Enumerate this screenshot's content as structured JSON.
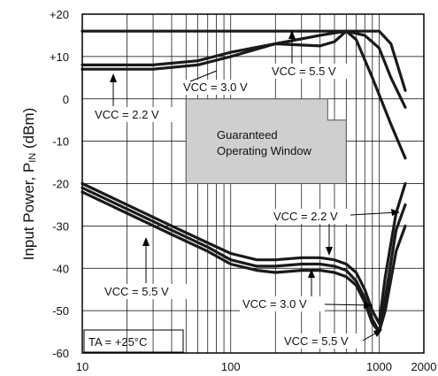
{
  "chart_data": {
    "type": "line",
    "x_scale": "log",
    "xlim": [
      10,
      2000
    ],
    "ylim": [
      -60,
      20
    ],
    "x_ticks": [
      "10",
      "100",
      "1000",
      "2000"
    ],
    "y_ticks": [
      "+20",
      "+10",
      "0",
      "-10",
      "-20",
      "-30",
      "-40",
      "-50",
      "-60"
    ],
    "ylabel_main": "Input Power, P",
    "ylabel_sub": "IN",
    "ylabel_unit": " (dBm)",
    "grid": true,
    "series": [
      {
        "name": "VCC = 2.2 V (max)",
        "x": [
          10,
          30,
          60,
          100,
          200,
          400,
          700,
          1000,
          1200,
          1500
        ],
        "y": [
          16,
          16,
          16,
          16,
          16,
          16,
          16,
          16,
          13,
          2
        ]
      },
      {
        "name": "VCC = 3.0 V (max)",
        "x": [
          10,
          30,
          60,
          100,
          200,
          400,
          500,
          600,
          700,
          900,
          1200,
          1500
        ],
        "y": [
          8,
          8,
          9,
          11,
          13,
          12.5,
          13.5,
          16,
          14,
          5,
          -6,
          -14
        ]
      },
      {
        "name": "VCC = 5.5 V (max)",
        "x": [
          10,
          30,
          60,
          100,
          200,
          400,
          600,
          800,
          1000,
          1200,
          1500
        ],
        "y": [
          7,
          7,
          8,
          10,
          13,
          15,
          16,
          15,
          12,
          5,
          -2
        ]
      },
      {
        "name": "VCC = 2.2 V (min)",
        "x": [
          10,
          20,
          40,
          70,
          100,
          150,
          200,
          300,
          400,
          500,
          600,
          700,
          800,
          900,
          1000,
          1100,
          1300,
          1500
        ],
        "y": [
          -20,
          -25,
          -30,
          -34,
          -36.5,
          -38,
          -38,
          -37.5,
          -37.5,
          -38,
          -39,
          -41,
          -45,
          -50,
          -53,
          -42,
          -27,
          -20
        ]
      },
      {
        "name": "VCC = 3.0 V (min)",
        "x": [
          10,
          20,
          40,
          70,
          100,
          150,
          200,
          300,
          400,
          500,
          600,
          700,
          800,
          900,
          1000,
          1100,
          1300,
          1500
        ],
        "y": [
          -21,
          -26,
          -31,
          -35,
          -38,
          -39.5,
          -39.5,
          -39,
          -39,
          -39.5,
          -40.5,
          -43,
          -47,
          -52,
          -55,
          -47,
          -31,
          -25
        ]
      },
      {
        "name": "VCC = 5.5 V (min)",
        "x": [
          10,
          20,
          40,
          70,
          100,
          150,
          200,
          300,
          400,
          500,
          600,
          700,
          800,
          900,
          1000,
          1100,
          1300,
          1500
        ],
        "y": [
          -22,
          -27,
          -32,
          -36,
          -39,
          -40.5,
          -41,
          -40.5,
          -40.5,
          -41,
          -42,
          -44,
          -48,
          -53,
          -55,
          -50,
          -36,
          -30
        ]
      }
    ],
    "window_region": {
      "x": [
        50,
        50,
        450,
        450,
        600,
        600
      ],
      "y": [
        -20,
        0,
        0,
        -5,
        -5,
        -20
      ]
    },
    "annotations": {
      "window_line1": "Guaranteed",
      "window_line2": "Operating Window",
      "ta_text": "TA = +25°C",
      "vcc_55_top": "VCC = 5.5 V",
      "vcc_30_top": "VCC = 3.0 V",
      "vcc_22_top": "VCC = 2.2 V",
      "vcc_22_bot": "VCC = 2.2 V",
      "vcc_55_bot_left": "VCC = 5.5 V",
      "vcc_30_bot": "VCC = 3.0 V",
      "vcc_55_bot": "VCC = 5.5 V"
    }
  }
}
